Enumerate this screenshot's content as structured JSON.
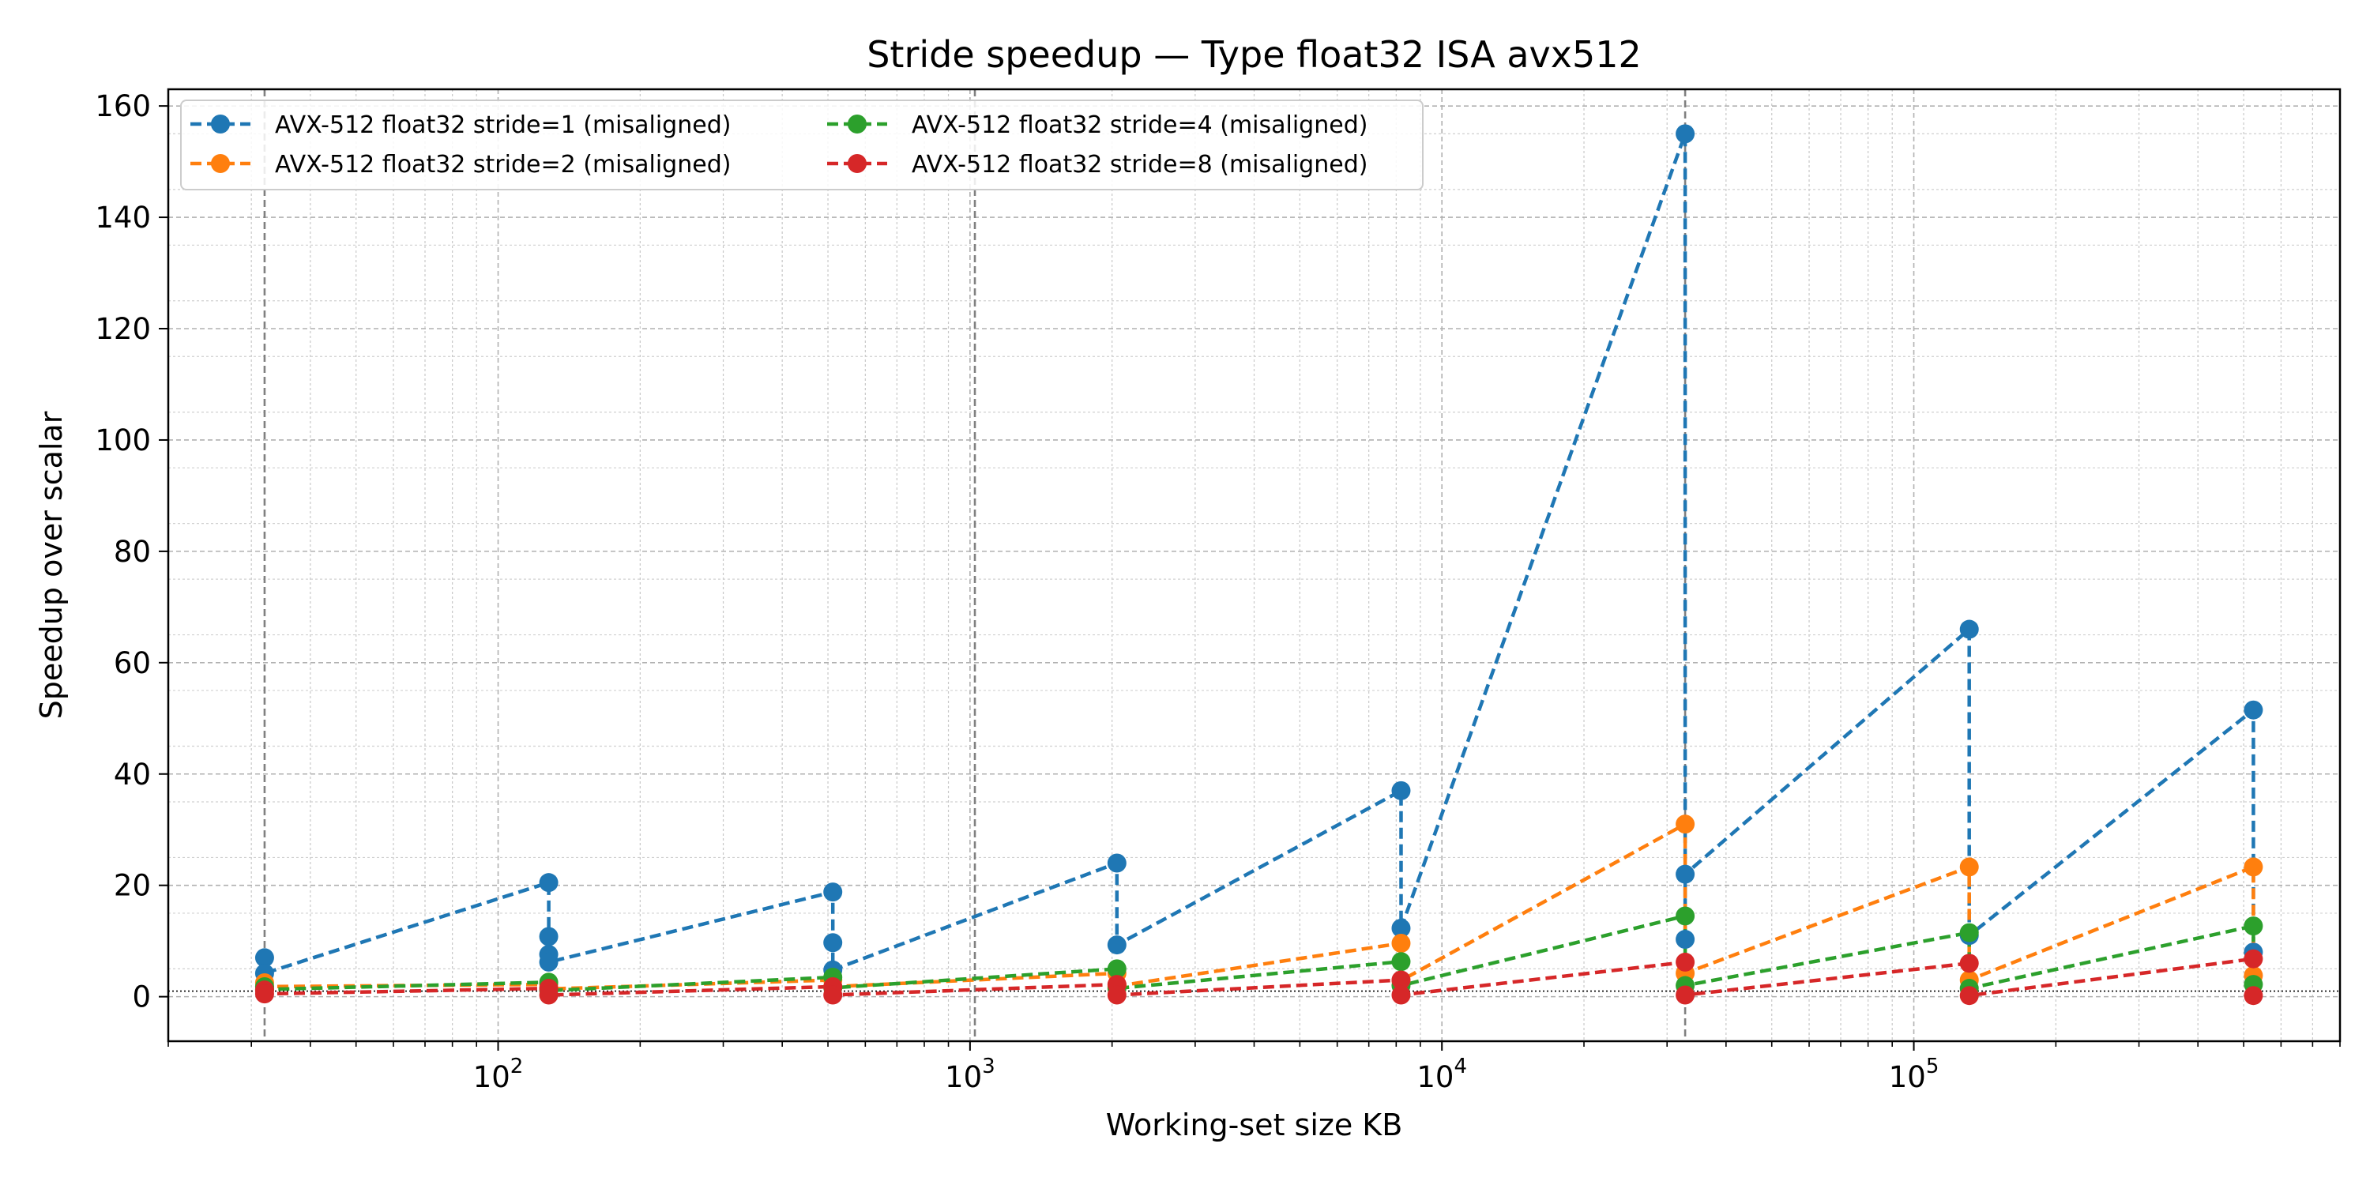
{
  "chart_data": {
    "type": "line",
    "title": "Stride speedup — Type float32 ISA avx512",
    "xlabel": "Working-set size KB",
    "ylabel": "Speedup over scalar",
    "xscale": "log",
    "xlim": [
      20,
      800000
    ],
    "ylim": [
      -8,
      163
    ],
    "yticks": [
      0,
      20,
      40,
      60,
      80,
      100,
      120,
      140,
      160
    ],
    "xticks": [
      {
        "base": "10",
        "exp": "2"
      },
      {
        "base": "10",
        "exp": "3"
      },
      {
        "base": "10",
        "exp": "4"
      },
      {
        "base": "10",
        "exp": "5"
      }
    ],
    "grid": true,
    "legend_position": "top-left",
    "reference_line_y": 1,
    "vertical_markers_x": [
      32,
      1024,
      32768
    ],
    "series": [
      {
        "name": "AVX-512 float32 stride=1 (misaligned)",
        "color": "#1f77b4",
        "x": [
          32,
          32,
          128,
          128,
          128,
          128,
          512,
          512,
          512,
          2048,
          2048,
          8192,
          8192,
          32768,
          32768,
          32768,
          131072,
          131072,
          524288,
          524288
        ],
        "y": [
          7.0,
          4.2,
          20.5,
          10.8,
          7.6,
          6.2,
          18.8,
          9.7,
          4.8,
          24.0,
          9.3,
          37.0,
          12.3,
          155.0,
          10.3,
          22.0,
          66.0,
          11.0,
          51.5,
          8.0
        ]
      },
      {
        "name": "AVX-512 float32 stride=2 (misaligned)",
        "color": "#ff7f0e",
        "x": [
          32,
          32,
          128,
          128,
          512,
          512,
          2048,
          2048,
          8192,
          8192,
          32768,
          32768,
          131072,
          131072,
          524288,
          524288
        ],
        "y": [
          2.5,
          1.8,
          2.2,
          1.4,
          3.0,
          1.8,
          4.2,
          1.9,
          9.6,
          2.9,
          31.0,
          4.2,
          23.3,
          3.0,
          23.3,
          3.8
        ]
      },
      {
        "name": "AVX-512 float32 stride=4 (misaligned)",
        "color": "#2ca02c",
        "x": [
          32,
          32,
          128,
          128,
          512,
          512,
          2048,
          2048,
          8192,
          8192,
          32768,
          32768,
          131072,
          131072,
          524288,
          524288
        ],
        "y": [
          1.8,
          1.3,
          2.6,
          1.1,
          3.5,
          1.6,
          5.0,
          1.5,
          6.3,
          2.0,
          14.5,
          2.0,
          11.5,
          1.5,
          12.7,
          2.2
        ]
      },
      {
        "name": "AVX-512 float32 stride=8 (misaligned)",
        "color": "#d62728",
        "x": [
          32,
          32,
          128,
          128,
          512,
          512,
          2048,
          2048,
          8192,
          8192,
          32768,
          32768,
          131072,
          131072,
          524288,
          524288
        ],
        "y": [
          1.2,
          0.5,
          1.5,
          0.3,
          1.8,
          0.3,
          2.2,
          0.3,
          3.0,
          0.3,
          6.2,
          0.3,
          6.0,
          0.2,
          6.8,
          0.2
        ]
      }
    ]
  }
}
